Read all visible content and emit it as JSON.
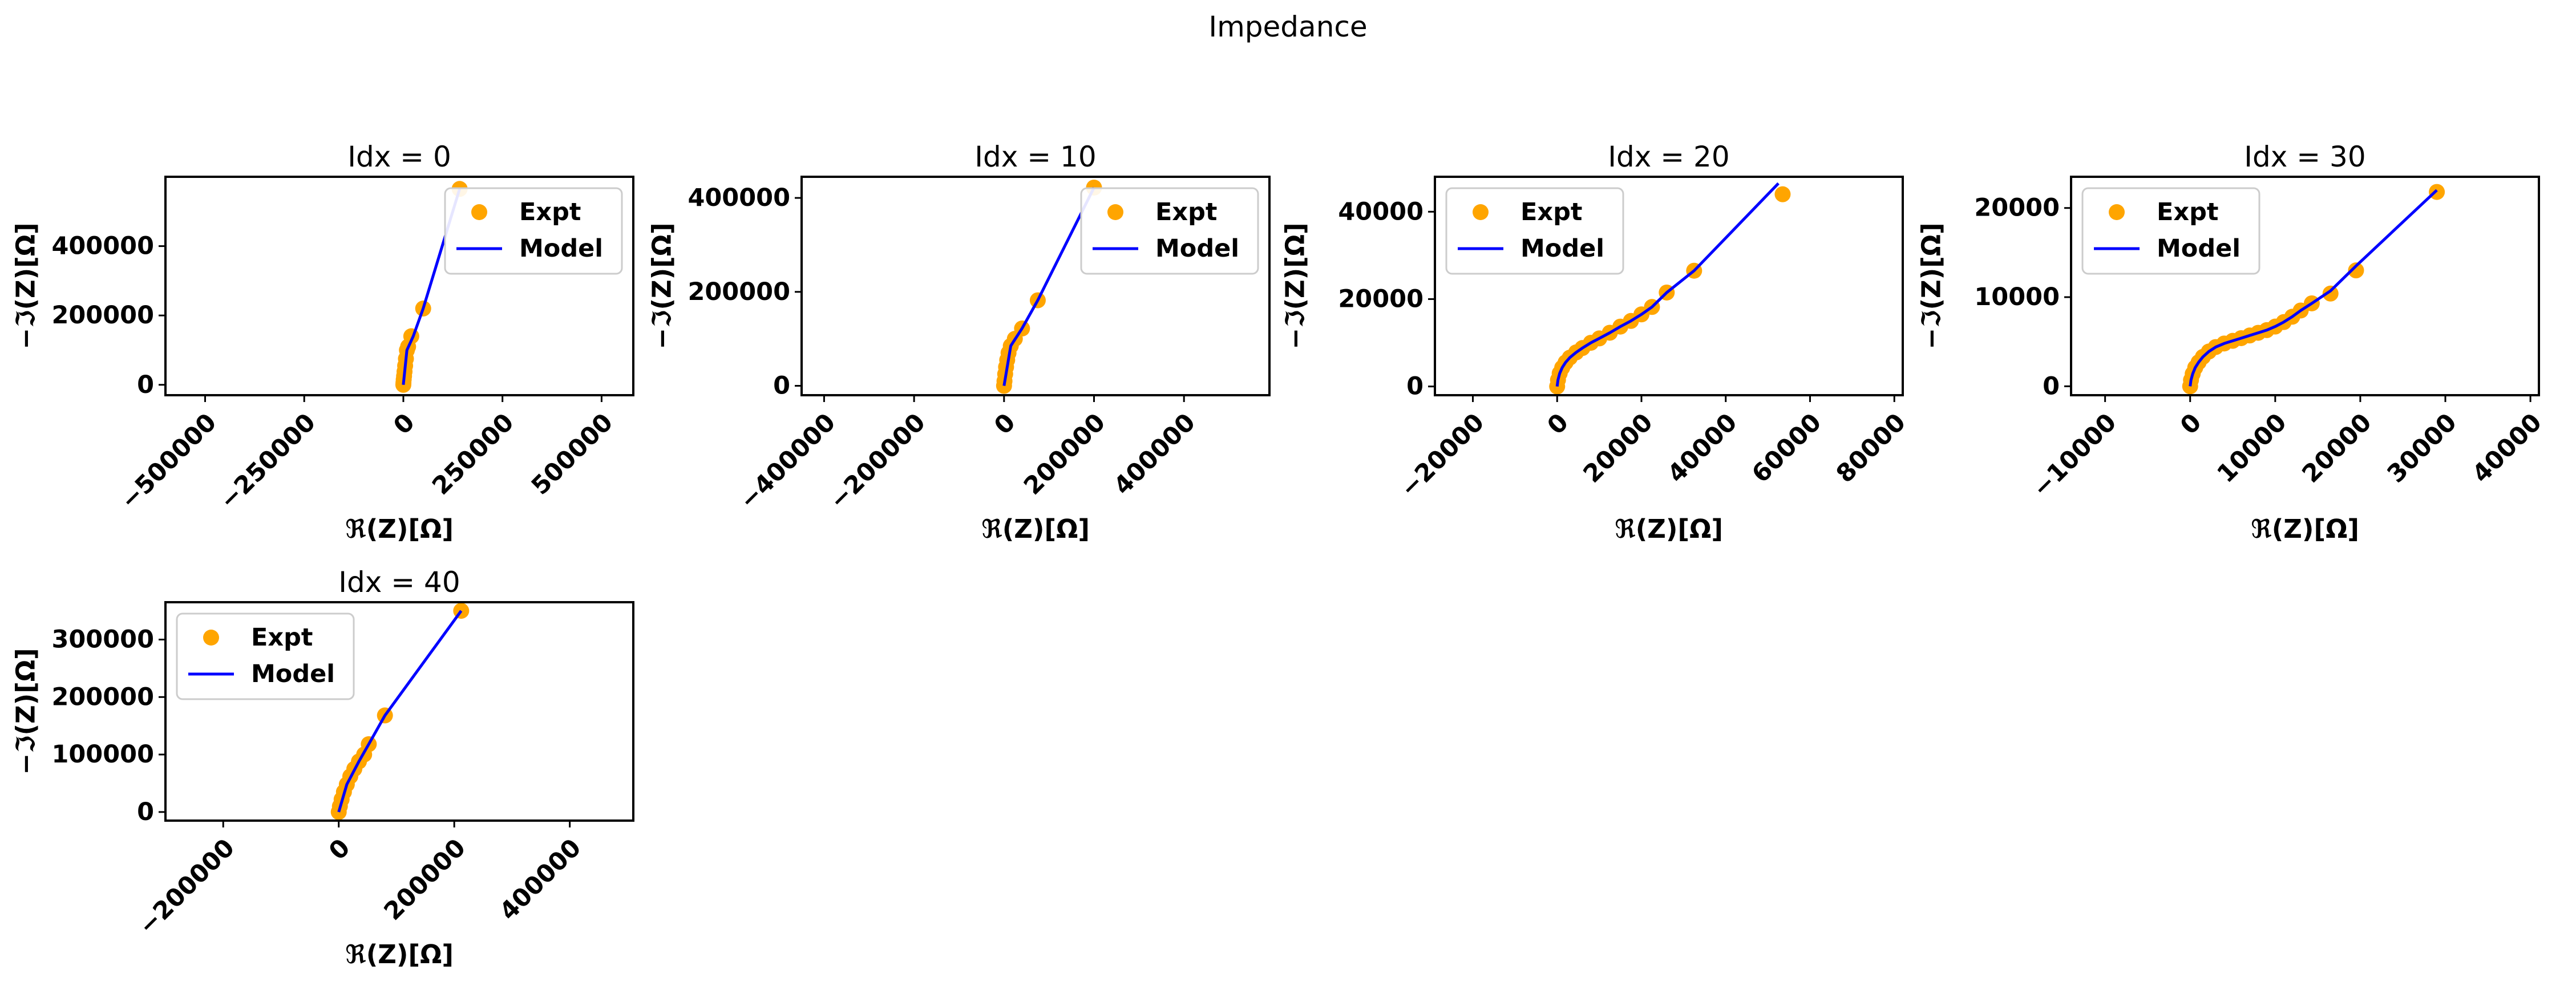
{
  "figure": {
    "title": "Impedance"
  },
  "colors": {
    "expt": "#FFA500",
    "model": "#0000FF"
  },
  "chart_data": [
    {
      "type": "scatter",
      "title": "Idx = 0",
      "xlabel": "ℜ(Z)[Ω]",
      "ylabel": "−ℑ(Z)[Ω]",
      "xlim": [
        -600000,
        580000
      ],
      "ylim": [
        -30000,
        600000
      ],
      "xticks": [
        -500000,
        -250000,
        0,
        250000,
        500000
      ],
      "xtick_labels": [
        "−500000",
        "−250000",
        "0",
        "250000",
        "500000"
      ],
      "yticks": [
        0,
        200000,
        400000
      ],
      "ytick_labels": [
        "0",
        "200000",
        "400000"
      ],
      "legend": {
        "position": "upper right",
        "entries": [
          "Expt",
          "Model"
        ]
      },
      "series": [
        {
          "name": "Expt",
          "kind": "points",
          "points": [
            [
              0,
              0
            ],
            [
              300,
              6000
            ],
            [
              900,
              15000
            ],
            [
              1800,
              25000
            ],
            [
              3000,
              38000
            ],
            [
              4500,
              55000
            ],
            [
              6500,
              75000
            ],
            [
              9000,
              100000
            ],
            [
              12000,
              110000
            ],
            [
              20000,
              140000
            ],
            [
              50000,
              220000
            ],
            [
              142000,
              565000
            ]
          ]
        },
        {
          "name": "Model",
          "kind": "line",
          "points": [
            [
              0,
              0
            ],
            [
              9000,
              100000
            ],
            [
              25000,
              140000
            ],
            [
              50000,
              220000
            ],
            [
              142000,
              565000
            ]
          ]
        }
      ]
    },
    {
      "type": "scatter",
      "title": "Idx = 10",
      "xlabel": "ℜ(Z)[Ω]",
      "ylabel": "−ℑ(Z)[Ω]",
      "xlim": [
        -450000,
        590000
      ],
      "ylim": [
        -20000,
        445000
      ],
      "xticks": [
        -400000,
        -200000,
        0,
        200000,
        400000
      ],
      "xtick_labels": [
        "−400000",
        "−200000",
        "0",
        "200000",
        "400000"
      ],
      "yticks": [
        0,
        200000,
        400000
      ],
      "ytick_labels": [
        "0",
        "200000",
        "400000"
      ],
      "legend": {
        "position": "upper right",
        "entries": [
          "Expt",
          "Model"
        ]
      },
      "series": [
        {
          "name": "Expt",
          "kind": "points",
          "points": [
            [
              0,
              0
            ],
            [
              1000,
              10000
            ],
            [
              2500,
              25000
            ],
            [
              4500,
              40000
            ],
            [
              7000,
              55000
            ],
            [
              10000,
              70000
            ],
            [
              15000,
              85000
            ],
            [
              24000,
              100000
            ],
            [
              40000,
              122000
            ],
            [
              75000,
              182000
            ],
            [
              200000,
              422000
            ]
          ]
        },
        {
          "name": "Model",
          "kind": "line",
          "points": [
            [
              0,
              0
            ],
            [
              15000,
              85000
            ],
            [
              40000,
              122000
            ],
            [
              75000,
              182000
            ],
            [
              200000,
              422000
            ]
          ]
        }
      ]
    },
    {
      "type": "scatter",
      "title": "Idx = 20",
      "xlabel": "ℜ(Z)[Ω]",
      "ylabel": "−ℑ(Z)[Ω]",
      "xlim": [
        -29000,
        82000
      ],
      "ylim": [
        -2000,
        48000
      ],
      "xticks": [
        -20000,
        0,
        20000,
        40000,
        60000,
        80000
      ],
      "xtick_labels": [
        "−20000",
        "0",
        "20000",
        "40000",
        "60000",
        "80000"
      ],
      "yticks": [
        0,
        20000,
        40000
      ],
      "ytick_labels": [
        "0",
        "20000",
        "40000"
      ],
      "legend": {
        "position": "upper left",
        "entries": [
          "Expt",
          "Model"
        ]
      },
      "series": [
        {
          "name": "Expt",
          "kind": "points",
          "points": [
            [
              0,
              0
            ],
            [
              200,
              1500
            ],
            [
              600,
              3000
            ],
            [
              1200,
              4300
            ],
            [
              2000,
              5500
            ],
            [
              3000,
              6600
            ],
            [
              4500,
              7800
            ],
            [
              6000,
              8800
            ],
            [
              8000,
              10000
            ],
            [
              10000,
              11000
            ],
            [
              12500,
              12300
            ],
            [
              15000,
              13700
            ],
            [
              17500,
              15000
            ],
            [
              20000,
              16500
            ],
            [
              22500,
              18200
            ],
            [
              26000,
              21500
            ],
            [
              32500,
              26500
            ],
            [
              53500,
              44000
            ]
          ]
        },
        {
          "name": "Model",
          "kind": "line",
          "points": [
            [
              0,
              0
            ],
            [
              200,
              1500
            ],
            [
              600,
              3000
            ],
            [
              1200,
              4300
            ],
            [
              2000,
              5500
            ],
            [
              3000,
              6600
            ],
            [
              4500,
              7800
            ],
            [
              6000,
              8800
            ],
            [
              8000,
              10000
            ],
            [
              10000,
              11000
            ],
            [
              12500,
              12300
            ],
            [
              15000,
              13700
            ],
            [
              17500,
              15000
            ],
            [
              20000,
              16500
            ],
            [
              22500,
              18200
            ],
            [
              26000,
              21500
            ],
            [
              32500,
              26500
            ],
            [
              52500,
              46500
            ]
          ]
        }
      ]
    },
    {
      "type": "scatter",
      "title": "Idx = 30",
      "xlabel": "ℜ(Z)[Ω]",
      "ylabel": "−ℑ(Z)[Ω]",
      "xlim": [
        -14000,
        41000
      ],
      "ylim": [
        -1000,
        23500
      ],
      "xticks": [
        -10000,
        0,
        10000,
        20000,
        30000,
        40000
      ],
      "xtick_labels": [
        "−10000",
        "0",
        "10000",
        "20000",
        "30000",
        "40000"
      ],
      "yticks": [
        0,
        10000,
        20000
      ],
      "ytick_labels": [
        "0",
        "10000",
        "20000"
      ],
      "legend": {
        "position": "upper left",
        "entries": [
          "Expt",
          "Model"
        ]
      },
      "series": [
        {
          "name": "Expt",
          "kind": "points",
          "points": [
            [
              0,
              0
            ],
            [
              100,
              700
            ],
            [
              300,
              1400
            ],
            [
              600,
              2100
            ],
            [
              1000,
              2700
            ],
            [
              1500,
              3300
            ],
            [
              2200,
              3900
            ],
            [
              3000,
              4400
            ],
            [
              4000,
              4800
            ],
            [
              5000,
              5100
            ],
            [
              6000,
              5400
            ],
            [
              7000,
              5700
            ],
            [
              8000,
              6000
            ],
            [
              9000,
              6300
            ],
            [
              10000,
              6700
            ],
            [
              11000,
              7200
            ],
            [
              12000,
              7800
            ],
            [
              13000,
              8500
            ],
            [
              14300,
              9300
            ],
            [
              16500,
              10400
            ],
            [
              19500,
              13000
            ],
            [
              29000,
              21800
            ]
          ]
        },
        {
          "name": "Model",
          "kind": "line",
          "points": [
            [
              0,
              0
            ],
            [
              100,
              700
            ],
            [
              300,
              1400
            ],
            [
              600,
              2100
            ],
            [
              1000,
              2700
            ],
            [
              1500,
              3300
            ],
            [
              2200,
              3900
            ],
            [
              3000,
              4400
            ],
            [
              4000,
              4800
            ],
            [
              5000,
              5100
            ],
            [
              6000,
              5400
            ],
            [
              7000,
              5700
            ],
            [
              8000,
              6000
            ],
            [
              9000,
              6300
            ],
            [
              10000,
              6700
            ],
            [
              11000,
              7200
            ],
            [
              12000,
              7800
            ],
            [
              13000,
              8500
            ],
            [
              14300,
              9300
            ],
            [
              16500,
              10700
            ],
            [
              19500,
              13500
            ],
            [
              29000,
              22000
            ]
          ]
        }
      ]
    },
    {
      "type": "scatter",
      "title": "Idx = 40",
      "xlabel": "ℜ(Z)[Ω]",
      "ylabel": "−ℑ(Z)[Ω]",
      "xlim": [
        -300000,
        510000
      ],
      "ylim": [
        -15000,
        365000
      ],
      "xticks": [
        -200000,
        0,
        200000,
        400000
      ],
      "xtick_labels": [
        "−200000",
        "0",
        "200000",
        "400000"
      ],
      "yticks": [
        0,
        100000,
        200000,
        300000
      ],
      "ytick_labels": [
        "0",
        "100000",
        "200000",
        "300000"
      ],
      "legend": {
        "position": "upper left",
        "entries": [
          "Expt",
          "Model"
        ]
      },
      "series": [
        {
          "name": "Expt",
          "kind": "points",
          "points": [
            [
              0,
              0
            ],
            [
              2000,
              10000
            ],
            [
              5000,
              22000
            ],
            [
              9000,
              35000
            ],
            [
              14000,
              48000
            ],
            [
              20000,
              62000
            ],
            [
              27000,
              75000
            ],
            [
              35000,
              88000
            ],
            [
              44000,
              100000
            ],
            [
              52000,
              118000
            ],
            [
              80000,
              168000
            ],
            [
              212000,
              350000
            ]
          ]
        },
        {
          "name": "Model",
          "kind": "line",
          "points": [
            [
              0,
              0
            ],
            [
              14000,
              48000
            ],
            [
              35000,
              88000
            ],
            [
              52000,
              118000
            ],
            [
              80000,
              168000
            ],
            [
              212000,
              350000
            ]
          ]
        }
      ]
    }
  ]
}
